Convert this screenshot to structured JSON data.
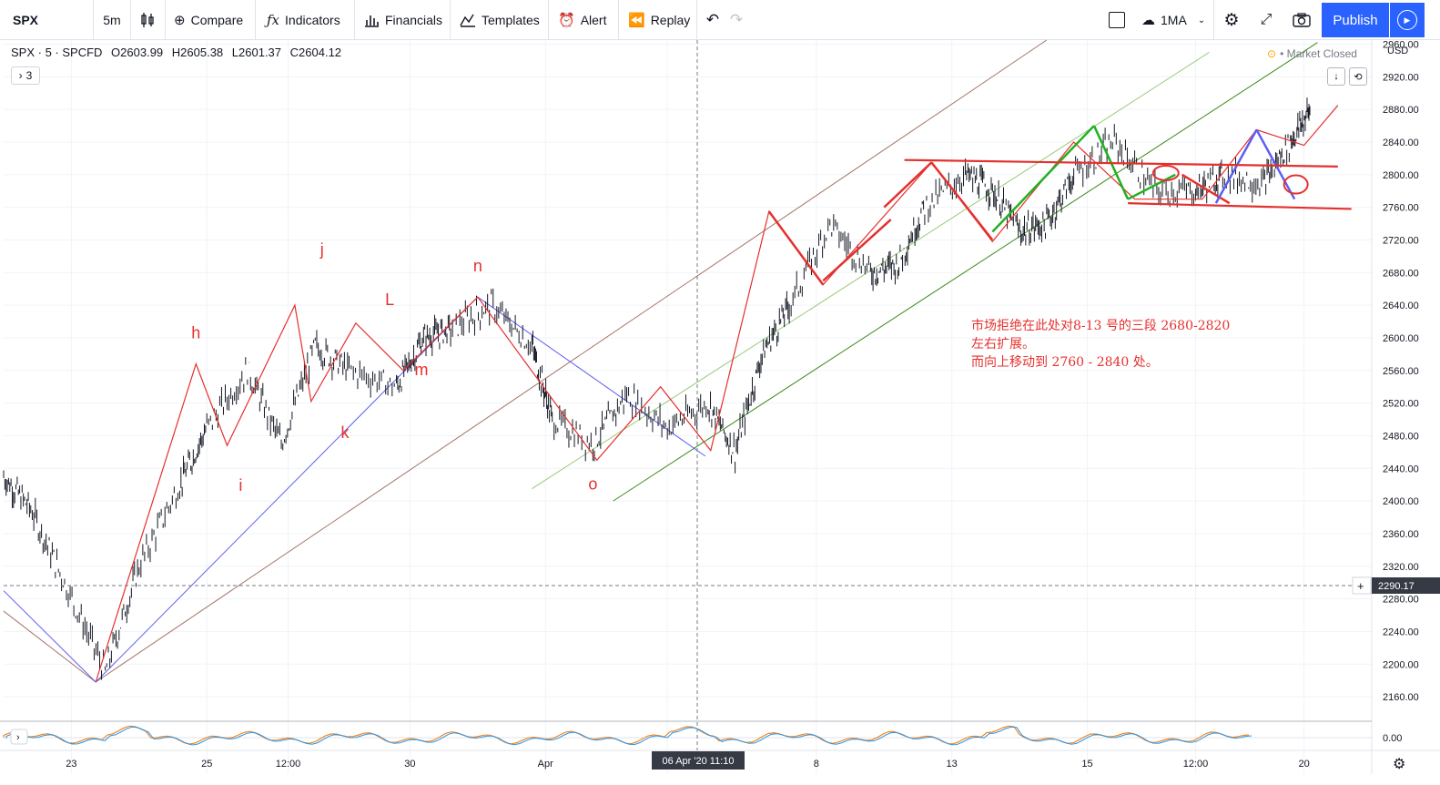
{
  "toolbar": {
    "symbol": "SPX",
    "interval": "5m",
    "compare": "Compare",
    "indicators": "Indicators",
    "financials": "Financials",
    "templates": "Templates",
    "alert": "Alert",
    "replay": "Replay",
    "ma": "1MA",
    "publish": "Publish"
  },
  "legend": {
    "title": "SPX · 5 · SPCFD",
    "open": "O2603.99",
    "high": "H2605.38",
    "low": "L2601.37",
    "close": "C2604.12",
    "collapsed_count": "3"
  },
  "status": {
    "market": "Market Closed",
    "currency": "USD"
  },
  "crosshair": {
    "price_label": "2290.17",
    "time_label": "06 Apr '20 11:10"
  },
  "oscillator": {
    "value_label": "0.00"
  },
  "annotation": {
    "line1": "市场拒绝在此处对8-13 号的三段 2680-2820",
    "line2": "左右扩展。",
    "line3": "而向上移动到 2760 - 2840 处。"
  },
  "wave_labels": [
    "h",
    "i",
    "j",
    "k",
    "L",
    "m",
    "n",
    "o"
  ],
  "colors": {
    "candle": "#131722",
    "wave_red": "#e5302d",
    "wave_blue": "#5b5ff0",
    "wave_green": "#22b022",
    "channel_brown": "#a5756a",
    "channel_green": "#3e8c1f",
    "channel_light_green": "#9acb78",
    "accent": "#2962ff"
  },
  "chart_data": {
    "type": "line",
    "title": "",
    "xlabel": "",
    "ylabel": "",
    "ylim": [
      2130,
      2965
    ],
    "y_ticks": [
      2160,
      2200,
      2240,
      2280,
      2320,
      2360,
      2400,
      2440,
      2480,
      2520,
      2560,
      2600,
      2640,
      2680,
      2720,
      2760,
      2800,
      2840,
      2880,
      2920,
      2960
    ],
    "x_ticks": [
      "23",
      "25",
      "12:00",
      "30",
      "Apr",
      "12:00",
      "8",
      "13",
      "15",
      "12:00",
      "20"
    ],
    "x_tick_positions": [
      0.5,
      1.5,
      2.1,
      3.0,
      4.0,
      4.9,
      6.0,
      7.0,
      8.0,
      8.8,
      9.6
    ],
    "series": [
      {
        "values_x": [
          0,
          0.2,
          0.45,
          0.75,
          1.0,
          1.3,
          1.5,
          1.8,
          2.05,
          2.3,
          2.55,
          2.9,
          3.1,
          3.3,
          3.6,
          3.9,
          4.05,
          4.35,
          4.6,
          4.9,
          5.2,
          5.4,
          5.6,
          5.8,
          6.1,
          6.4,
          6.6,
          6.8,
          7.1,
          7.3,
          7.5,
          7.7,
          7.9,
          8.2,
          8.5,
          8.8,
          9.0,
          9.3,
          9.5,
          9.65
        ],
        "values_y": [
          2430,
          2390,
          2300,
          2190,
          2320,
          2420,
          2490,
          2560,
          2470,
          2590,
          2560,
          2540,
          2600,
          2610,
          2640,
          2590,
          2500,
          2470,
          2530,
          2490,
          2520,
          2460,
          2580,
          2640,
          2740,
          2680,
          2690,
          2760,
          2800,
          2780,
          2730,
          2740,
          2800,
          2840,
          2780,
          2780,
          2800,
          2790,
          2840,
          2880
        ]
      }
    ],
    "wave_points": [
      {
        "label": "h",
        "x": 1.42,
        "y": 2568
      },
      {
        "label": "i",
        "x": 1.75,
        "y": 2468
      },
      {
        "label": "j",
        "x": 2.35,
        "y": 2640
      },
      {
        "label": "k",
        "x": 2.52,
        "y": 2522
      },
      {
        "label": "L",
        "x": 2.85,
        "y": 2618
      },
      {
        "label": "m",
        "x": 2.95,
        "y": 2560
      },
      {
        "label": "n",
        "x": 3.5,
        "y": 2650
      },
      {
        "label": "o",
        "x": 4.35,
        "y": 2450
      }
    ],
    "horizontal_levels": [
      2815,
      2765
    ]
  }
}
